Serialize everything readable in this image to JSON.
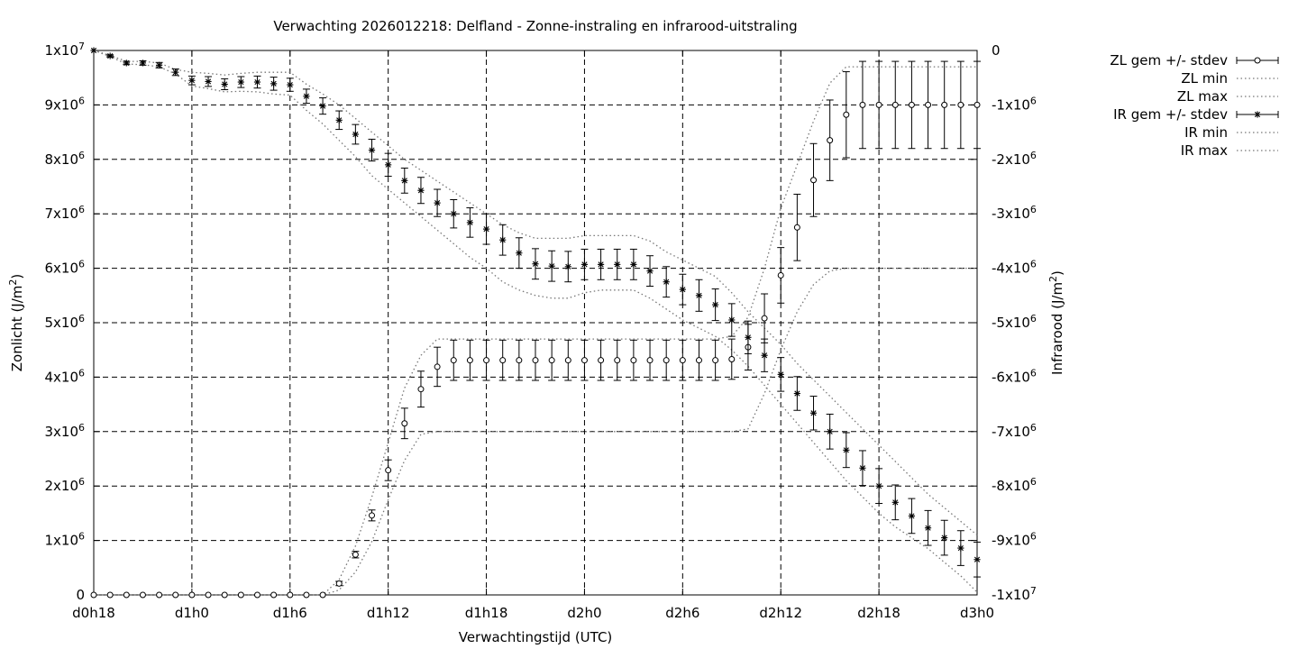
{
  "chart_data": {
    "type": "line",
    "title": "Verwachting 2026012218: Delfland - Zonne-instraling en infrarood-uitstraling",
    "xlabel": "Verwachtingstijd (UTC)",
    "ylabel": "Zonlicht (J/m²)",
    "y2label": "Infrarood (J/m²)",
    "xlim": [
      18,
      72
    ],
    "ylim": [
      0,
      10000000
    ],
    "y2lim": [
      -10000000,
      0
    ],
    "x_ticks": [
      {
        "value": 18,
        "label": "d0h18"
      },
      {
        "value": 24,
        "label": "d1h0"
      },
      {
        "value": 30,
        "label": "d1h6"
      },
      {
        "value": 36,
        "label": "d1h12"
      },
      {
        "value": 42,
        "label": "d1h18"
      },
      {
        "value": 48,
        "label": "d2h0"
      },
      {
        "value": 54,
        "label": "d2h6"
      },
      {
        "value": 60,
        "label": "d2h12"
      },
      {
        "value": 66,
        "label": "d2h18"
      },
      {
        "value": 72,
        "label": "d3h0"
      }
    ],
    "y_ticks": [
      {
        "value": 0,
        "m": "0",
        "e": ""
      },
      {
        "value": 1000000,
        "m": "1x10",
        "e": "6"
      },
      {
        "value": 2000000,
        "m": "2x10",
        "e": "6"
      },
      {
        "value": 3000000,
        "m": "3x10",
        "e": "6"
      },
      {
        "value": 4000000,
        "m": "4x10",
        "e": "6"
      },
      {
        "value": 5000000,
        "m": "5x10",
        "e": "6"
      },
      {
        "value": 6000000,
        "m": "6x10",
        "e": "6"
      },
      {
        "value": 7000000,
        "m": "7x10",
        "e": "6"
      },
      {
        "value": 8000000,
        "m": "8x10",
        "e": "6"
      },
      {
        "value": 9000000,
        "m": "9x10",
        "e": "6"
      },
      {
        "value": 10000000,
        "m": "1x10",
        "e": "7"
      }
    ],
    "y2_ticks": [
      {
        "value": 0,
        "m": "0",
        "e": ""
      },
      {
        "value": -1000000,
        "m": "-1x10",
        "e": "6"
      },
      {
        "value": -2000000,
        "m": "-2x10",
        "e": "6"
      },
      {
        "value": -3000000,
        "m": "-3x10",
        "e": "6"
      },
      {
        "value": -4000000,
        "m": "-4x10",
        "e": "6"
      },
      {
        "value": -5000000,
        "m": "-5x10",
        "e": "6"
      },
      {
        "value": -6000000,
        "m": "-6x10",
        "e": "6"
      },
      {
        "value": -7000000,
        "m": "-7x10",
        "e": "6"
      },
      {
        "value": -8000000,
        "m": "-8x10",
        "e": "6"
      },
      {
        "value": -9000000,
        "m": "-9x10",
        "e": "6"
      },
      {
        "value": -10000000,
        "m": "-1x10",
        "e": "7"
      }
    ],
    "grid": true,
    "legend_position": "outside-right-top",
    "x": [
      18,
      19,
      20,
      21,
      22,
      23,
      24,
      25,
      26,
      27,
      28,
      29,
      30,
      31,
      32,
      33,
      34,
      35,
      36,
      37,
      38,
      39,
      40,
      41,
      42,
      43,
      44,
      45,
      46,
      47,
      48,
      49,
      50,
      51,
      52,
      53,
      54,
      55,
      56,
      57,
      58,
      59,
      60,
      61,
      62,
      63,
      64,
      65,
      66,
      67,
      68,
      69,
      70,
      71,
      72
    ],
    "series": [
      {
        "name": "ZL gem +/- stdev",
        "axis": "y",
        "marker": "circle",
        "mean": [
          0,
          0,
          0,
          0,
          0,
          0,
          0,
          0,
          0,
          0,
          0,
          0,
          0,
          0,
          0,
          210000,
          740000,
          1460000,
          2290000,
          3150000,
          3780000,
          4190000,
          4310000,
          4310000,
          4310000,
          4310000,
          4310000,
          4310000,
          4310000,
          4310000,
          4310000,
          4310000,
          4310000,
          4310000,
          4310000,
          4310000,
          4310000,
          4310000,
          4310000,
          4330000,
          4550000,
          5080000,
          5870000,
          6750000,
          7620000,
          8350000,
          8820000,
          9000000,
          9000000,
          9000000,
          9000000,
          9000000,
          9000000,
          9000000,
          9000000
        ],
        "stdev": [
          0,
          0,
          0,
          0,
          0,
          0,
          0,
          0,
          0,
          0,
          0,
          0,
          0,
          0,
          0,
          40000,
          60000,
          100000,
          190000,
          280000,
          330000,
          360000,
          370000,
          370000,
          370000,
          370000,
          370000,
          370000,
          370000,
          370000,
          370000,
          370000,
          370000,
          370000,
          370000,
          370000,
          370000,
          370000,
          370000,
          370000,
          420000,
          450000,
          510000,
          610000,
          670000,
          740000,
          790000,
          800000,
          800000,
          800000,
          800000,
          800000,
          800000,
          800000,
          800000
        ]
      },
      {
        "name": "ZL min",
        "axis": "y",
        "values": [
          0,
          0,
          0,
          0,
          0,
          0,
          0,
          0,
          0,
          0,
          0,
          0,
          0,
          0,
          0,
          90000,
          420000,
          980000,
          1750000,
          2470000,
          2950000,
          3000000,
          3000000,
          3000000,
          3000000,
          3000000,
          3000000,
          3000000,
          3000000,
          3000000,
          3000000,
          3000000,
          3000000,
          3000000,
          3000000,
          3000000,
          3000000,
          3000000,
          3000000,
          3000000,
          3050000,
          3700000,
          4500000,
          5200000,
          5700000,
          5950000,
          6000000,
          6000000,
          6000000,
          6000000,
          6000000,
          6000000,
          6000000,
          6000000,
          6000000
        ]
      },
      {
        "name": "ZL max",
        "axis": "y",
        "values": [
          0,
          0,
          0,
          0,
          0,
          0,
          0,
          0,
          0,
          0,
          0,
          0,
          0,
          0,
          0,
          280000,
          900000,
          1800000,
          2800000,
          3800000,
          4400000,
          4700000,
          4700000,
          4700000,
          4700000,
          4700000,
          4700000,
          4700000,
          4700000,
          4700000,
          4700000,
          4700000,
          4700000,
          4700000,
          4700000,
          4700000,
          4700000,
          4700000,
          4700000,
          4750000,
          5100000,
          6000000,
          7100000,
          7900000,
          8700000,
          9400000,
          9700000,
          9700000,
          9700000,
          9700000,
          9700000,
          9700000,
          9700000,
          9700000,
          9700000
        ]
      },
      {
        "name": "IR gem +/- stdev",
        "axis": "y2",
        "marker": "star",
        "mean": [
          0,
          -100000,
          -230000,
          -230000,
          -270000,
          -400000,
          -550000,
          -570000,
          -620000,
          -580000,
          -580000,
          -610000,
          -630000,
          -840000,
          -1020000,
          -1280000,
          -1540000,
          -1830000,
          -2100000,
          -2390000,
          -2570000,
          -2800000,
          -3000000,
          -3160000,
          -3280000,
          -3480000,
          -3720000,
          -3920000,
          -3960000,
          -3970000,
          -3930000,
          -3930000,
          -3930000,
          -3930000,
          -4050000,
          -4250000,
          -4390000,
          -4500000,
          -4670000,
          -4950000,
          -5270000,
          -5600000,
          -5950000,
          -6300000,
          -6660000,
          -7000000,
          -7340000,
          -7670000,
          -8000000,
          -8300000,
          -8550000,
          -8770000,
          -8950000,
          -9140000,
          -9350000
        ],
        "stdev": [
          0,
          20000,
          30000,
          40000,
          50000,
          60000,
          80000,
          90000,
          100000,
          100000,
          110000,
          120000,
          120000,
          130000,
          150000,
          170000,
          180000,
          200000,
          210000,
          230000,
          240000,
          250000,
          260000,
          270000,
          280000,
          280000,
          280000,
          280000,
          280000,
          280000,
          280000,
          280000,
          280000,
          280000,
          280000,
          280000,
          280000,
          290000,
          290000,
          300000,
          300000,
          300000,
          310000,
          310000,
          310000,
          320000,
          320000,
          320000,
          320000,
          320000,
          320000,
          320000,
          320000,
          320000,
          320000
        ]
      },
      {
        "name": "IR min",
        "axis": "y2",
        "values": [
          0,
          -110000,
          -250000,
          -260000,
          -300000,
          -430000,
          -650000,
          -700000,
          -760000,
          -750000,
          -760000,
          -800000,
          -820000,
          -1100000,
          -1350000,
          -1650000,
          -1950000,
          -2300000,
          -2550000,
          -2800000,
          -3050000,
          -3300000,
          -3550000,
          -3800000,
          -4000000,
          -4250000,
          -4400000,
          -4500000,
          -4550000,
          -4550000,
          -4450000,
          -4400000,
          -4400000,
          -4400000,
          -4550000,
          -4750000,
          -4950000,
          -5100000,
          -5250000,
          -5500000,
          -5800000,
          -6150000,
          -6500000,
          -6850000,
          -7200000,
          -7550000,
          -7900000,
          -8200000,
          -8500000,
          -8750000,
          -8950000,
          -9150000,
          -9400000,
          -9650000,
          -9950000
        ]
      },
      {
        "name": "IR max",
        "axis": "y2",
        "values": [
          0,
          -90000,
          -200000,
          -200000,
          -230000,
          -350000,
          -400000,
          -420000,
          -450000,
          -420000,
          -400000,
          -400000,
          -400000,
          -620000,
          -800000,
          -1000000,
          -1250000,
          -1500000,
          -1750000,
          -2000000,
          -2200000,
          -2400000,
          -2600000,
          -2800000,
          -3000000,
          -3200000,
          -3350000,
          -3450000,
          -3450000,
          -3450000,
          -3400000,
          -3400000,
          -3400000,
          -3400000,
          -3500000,
          -3700000,
          -3850000,
          -4000000,
          -4150000,
          -4450000,
          -4800000,
          -5100000,
          -5400000,
          -5750000,
          -6050000,
          -6350000,
          -6650000,
          -6950000,
          -7250000,
          -7550000,
          -7850000,
          -8150000,
          -8400000,
          -8650000,
          -8900000
        ]
      }
    ]
  }
}
